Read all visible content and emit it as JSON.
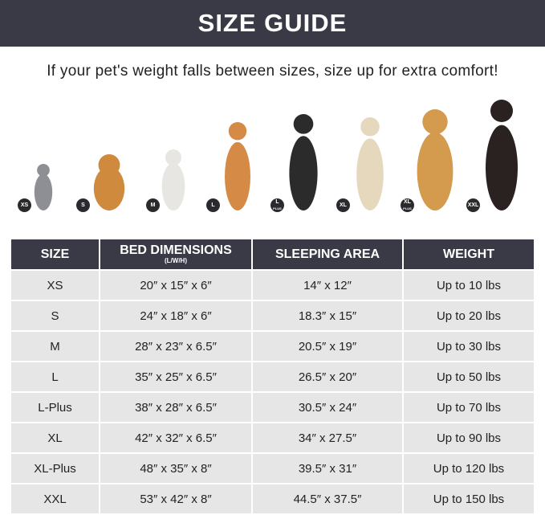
{
  "title": "SIZE GUIDE",
  "subtitle": "If your pet's weight falls between sizes, size up for extra comfort!",
  "pets": [
    {
      "badge": "XS",
      "animal": "cat",
      "color": "#8e8f95"
    },
    {
      "badge": "S",
      "animal": "pomeranian",
      "color": "#d08a3e"
    },
    {
      "badge": "M",
      "animal": "french-bulldog",
      "color": "#e8e6e2"
    },
    {
      "badge": "L",
      "animal": "shiba-inu",
      "color": "#d58a45"
    },
    {
      "badge": "L",
      "badge_sub": "PLUS",
      "animal": "border-collie",
      "color": "#2b2b2b"
    },
    {
      "badge": "XL",
      "animal": "labrador",
      "color": "#e6d8bd"
    },
    {
      "badge": "XL",
      "badge_sub": "PLUS",
      "animal": "golden-retriever",
      "color": "#d49a4e"
    },
    {
      "badge": "XXL",
      "animal": "doberman",
      "color": "#2a2220"
    }
  ],
  "table": {
    "headers": [
      "SIZE",
      "BED DIMENSIONS",
      "SLEEPING AREA",
      "WEIGHT"
    ],
    "header_note": "(L/W/H)",
    "rows": [
      [
        "XS",
        "20″ x 15″ x 6″",
        "14″ x 12″",
        "Up to 10 lbs"
      ],
      [
        "S",
        "24″ x 18″ x 6″",
        "18.3″ x 15″",
        "Up to 20 lbs"
      ],
      [
        "M",
        "28″ x 23″ x 6.5″",
        "20.5″ x 19″",
        "Up to 30 lbs"
      ],
      [
        "L",
        "35″ x 25″ x 6.5″",
        "26.5″ x 20″",
        "Up to 50 lbs"
      ],
      [
        "L-Plus",
        "38″ x 28″ x 6.5″",
        "30.5″ x 24″",
        "Up to 70 lbs"
      ],
      [
        "XL",
        "42″ x 32″ x 6.5″",
        "34″ x 27.5″",
        "Up to 90 lbs"
      ],
      [
        "XL-Plus",
        "48″ x 35″ x 8″",
        "39.5″ x 31″",
        "Up to 120 lbs"
      ],
      [
        "XXL",
        "53″ x 42″ x 8″",
        "44.5″ x 37.5″",
        "Up to 150 lbs"
      ]
    ]
  }
}
